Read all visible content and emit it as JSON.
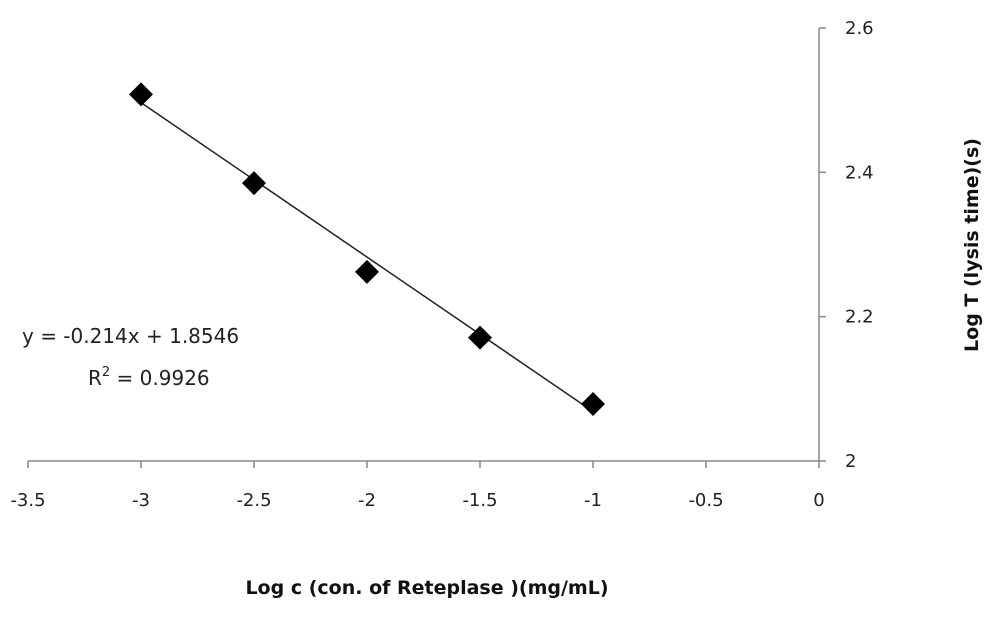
{
  "chart_data": {
    "type": "scatter",
    "xlabel": "Log c (con. of Reteplase )(mg/mL)",
    "ylabel": "Log T (lysis time)(s)",
    "xlim": [
      -3.5,
      0
    ],
    "ylim": [
      2,
      2.6
    ],
    "x_ticks": [
      -3.5,
      -3,
      -2.5,
      -2,
      -1.5,
      -1,
      -0.5,
      0
    ],
    "x_tick_labels": [
      "-3.5",
      "-3",
      "-2.5",
      "-2",
      "-1.5",
      "-1",
      "-0.5",
      "0"
    ],
    "y_ticks": [
      2,
      2.2,
      2.4,
      2.6
    ],
    "y_tick_labels": [
      "2",
      "2.2",
      "2.4",
      "2.6"
    ],
    "grid": false,
    "series": [
      {
        "x": [
          -3,
          -2.5,
          -2,
          -1.5,
          -1
        ],
        "y": [
          2.508,
          2.385,
          2.262,
          2.171,
          2.079
        ],
        "marker": "diamond",
        "color": "#000000"
      }
    ],
    "trendline": {
      "slope": -0.214,
      "intercept": 1.8546,
      "x_range": [
        -3,
        -1
      ]
    },
    "annotations": {
      "equation": "y = -0.214x + 1.8546",
      "r_squared_label": "R",
      "r_squared_sup": "2",
      "r_squared_value": " = 0.9926"
    }
  }
}
